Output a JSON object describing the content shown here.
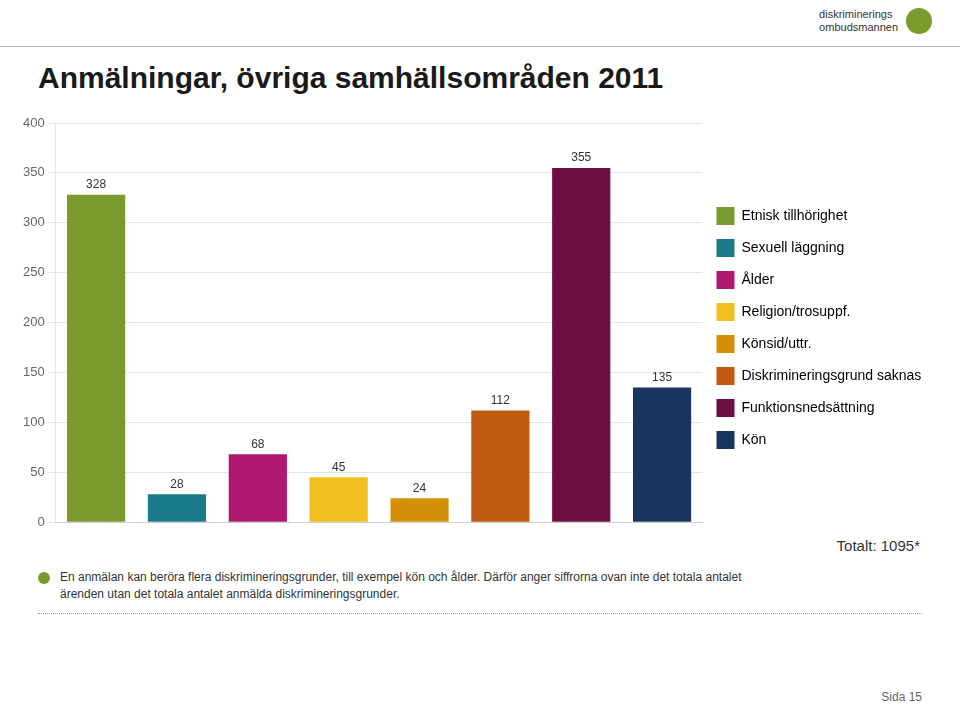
{
  "chart_data": {
    "type": "bar",
    "title": "Anmälningar, övriga samhällsområden 2011",
    "categories": [
      "Etnisk tillhörighet",
      "Sexuell läggning",
      "Ålder",
      "Religion/trosuppf.",
      "Könsid/uttr.",
      "Diskrimineringsgrund saknas",
      "Funktionsnedsättning",
      "Kön"
    ],
    "values": [
      328,
      28,
      68,
      45,
      24,
      112,
      355,
      135
    ],
    "colors": [
      "#7a9a2e",
      "#1a7a8a",
      "#b01870",
      "#f0c020",
      "#d4900a",
      "#c05a10",
      "#6b1040",
      "#1a3560"
    ],
    "ylim": [
      0,
      400
    ],
    "yticks": [
      0,
      50,
      100,
      150,
      200,
      250,
      300,
      350,
      400
    ],
    "grid": true,
    "data_labels": true,
    "legend": "right",
    "tick_labels": "y",
    "annotations": [
      "Totalt: 1095*",
      "En anmälan kan beröra flera diskrimineringsgrunder, till exempel kön och ålder. Därför anger siffrorna ovan inte det totala antalet\närenden utan det totala antalet anmälda diskrimineringsgrunder.",
      "Sida 15",
      "diskriminerings",
      "ombudsmannen"
    ]
  }
}
